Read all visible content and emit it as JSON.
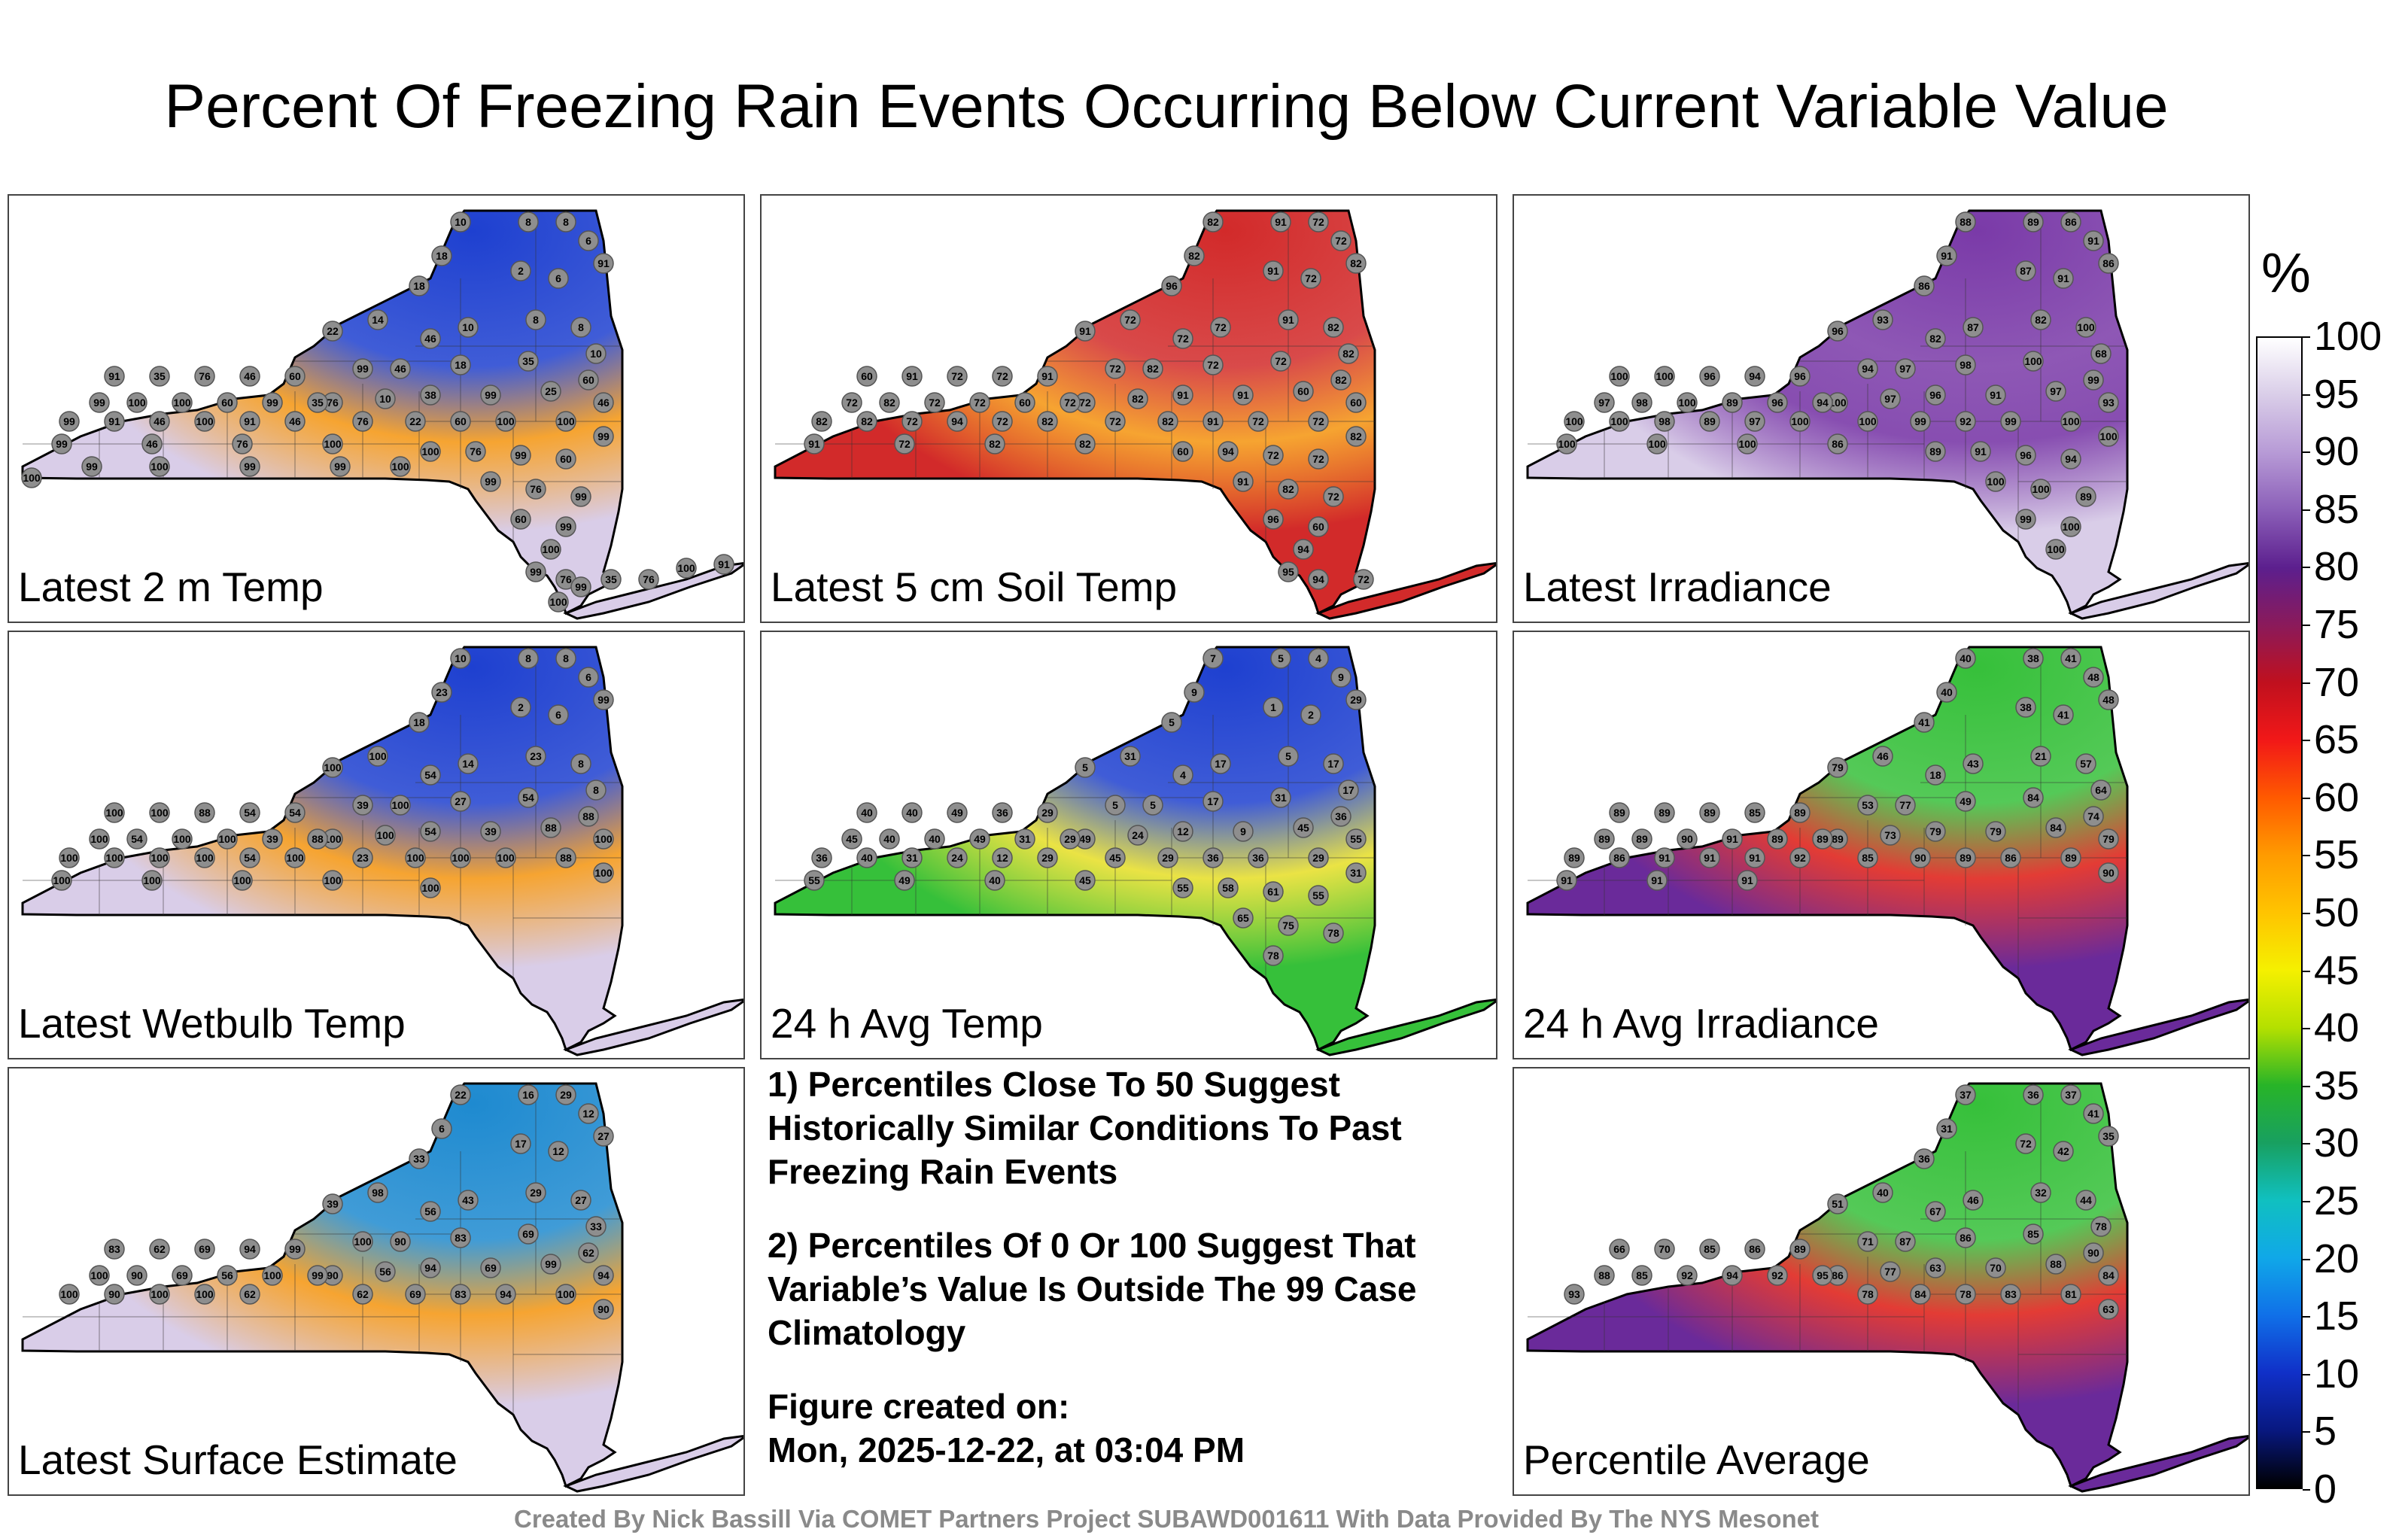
{
  "title": "Percent Of Freezing Rain Events Occurring Below Current Variable Value",
  "panels": [
    {
      "label": "Latest 2 m Temp",
      "fill": "#d9cde8",
      "north": "#1e40d0",
      "hot": "#f59a1a",
      "values": [
        "10",
        "8",
        "8",
        "6",
        "18",
        "18",
        "2",
        "6",
        "91",
        "14",
        "10",
        "46",
        "8",
        "8",
        "10",
        "22",
        "99",
        "46",
        "18",
        "35",
        "60",
        "10",
        "38",
        "99",
        "25",
        "46",
        "76",
        "76",
        "22",
        "60",
        "100",
        "100",
        "99",
        "91",
        "35",
        "76",
        "46",
        "60",
        "99",
        "100",
        "100",
        "60",
        "99",
        "35",
        "99",
        "91",
        "46",
        "100",
        "91",
        "46",
        "99",
        "46",
        "76",
        "100",
        "100",
        "76",
        "99",
        "60",
        "99",
        "76",
        "99",
        "60",
        "99",
        "100",
        "99",
        "76",
        "35",
        "76",
        "100",
        "91",
        "100",
        "99",
        "100",
        "99",
        "99",
        "100",
        "99",
        "100"
      ]
    },
    {
      "label": "Latest 5 cm Soil Temp",
      "fill": "#d22a2a",
      "north": "#d22a2a",
      "hot": "#f59a1a",
      "values": [
        "82",
        "91",
        "72",
        "72",
        "82",
        "96",
        "91",
        "72",
        "82",
        "72",
        "72",
        "72",
        "91",
        "82",
        "82",
        "91",
        "72",
        "82",
        "72",
        "72",
        "82",
        "82",
        "91",
        "91",
        "60",
        "60",
        "72",
        "72",
        "82",
        "91",
        "72",
        "72",
        "82",
        "60",
        "91",
        "72",
        "72",
        "91",
        "72",
        "82",
        "72",
        "72",
        "60",
        "72",
        "82",
        "82",
        "72",
        "94",
        "72",
        "82",
        "91",
        "72",
        "82",
        "82",
        "60",
        "94",
        "72",
        "72",
        "91",
        "82",
        "72",
        "96",
        "60",
        "94",
        "95",
        "94",
        "72"
      ]
    },
    {
      "label": "Latest Irradiance",
      "fill": "#d9cde8",
      "north": "#7a3aa8",
      "hot": "#7a3aa8",
      "values": [
        "88",
        "89",
        "86",
        "91",
        "91",
        "86",
        "87",
        "91",
        "86",
        "93",
        "87",
        "82",
        "82",
        "100",
        "68",
        "96",
        "94",
        "97",
        "98",
        "100",
        "99",
        "97",
        "96",
        "91",
        "97",
        "93",
        "100",
        "100",
        "99",
        "92",
        "99",
        "100",
        "100",
        "100",
        "100",
        "96",
        "94",
        "96",
        "97",
        "98",
        "100",
        "89",
        "96",
        "94",
        "100",
        "100",
        "98",
        "89",
        "97",
        "100",
        "100",
        "100",
        "100",
        "86",
        "89",
        "91",
        "96",
        "94",
        "100",
        "100",
        "89",
        "99",
        "100",
        "100"
      ]
    },
    {
      "label": "Latest Wetbulb Temp",
      "fill": "#d9cde8",
      "north": "#1e40d0",
      "hot": "#f59a1a",
      "values": [
        "10",
        "8",
        "8",
        "6",
        "23",
        "18",
        "2",
        "6",
        "99",
        "100",
        "14",
        "54",
        "23",
        "8",
        "8",
        "100",
        "39",
        "100",
        "27",
        "54",
        "88",
        "100",
        "54",
        "39",
        "88",
        "100",
        "100",
        "23",
        "100",
        "100",
        "100",
        "88",
        "100",
        "100",
        "100",
        "88",
        "54",
        "54",
        "100",
        "54",
        "100",
        "100",
        "39",
        "88",
        "100",
        "100",
        "100",
        "100",
        "54",
        "100",
        "100",
        "100",
        "100",
        "100",
        "100"
      ]
    },
    {
      "label": "24 h Avg Temp",
      "fill": "#36c03a",
      "north": "#1e40d0",
      "hot": "#e8e030",
      "values": [
        "7",
        "5",
        "4",
        "9",
        "9",
        "5",
        "1",
        "2",
        "29",
        "31",
        "17",
        "4",
        "5",
        "17",
        "17",
        "5",
        "5",
        "5",
        "17",
        "31",
        "36",
        "24",
        "12",
        "9",
        "45",
        "55",
        "49",
        "45",
        "29",
        "36",
        "36",
        "29",
        "31",
        "40",
        "40",
        "49",
        "36",
        "29",
        "45",
        "40",
        "40",
        "49",
        "31",
        "29",
        "36",
        "40",
        "31",
        "24",
        "12",
        "29",
        "55",
        "49",
        "40",
        "45",
        "55",
        "58",
        "61",
        "55",
        "65",
        "75",
        "78",
        "78"
      ]
    },
    {
      "label": "24 h Avg Irradiance",
      "fill": "#6a2a9a",
      "north": "#36c03a",
      "hot": "#e0261e",
      "values": [
        "40",
        "38",
        "41",
        "48",
        "40",
        "41",
        "38",
        "41",
        "48",
        "46",
        "43",
        "18",
        "21",
        "57",
        "64",
        "79",
        "53",
        "77",
        "49",
        "84",
        "74",
        "73",
        "79",
        "79",
        "84",
        "79",
        "89",
        "85",
        "90",
        "89",
        "86",
        "89",
        "90",
        "89",
        "89",
        "89",
        "85",
        "89",
        "89",
        "89",
        "90",
        "91",
        "89",
        "89",
        "89",
        "86",
        "91",
        "91",
        "91",
        "92",
        "91",
        "91",
        "91"
      ]
    },
    {
      "label": "Latest Surface Estimate",
      "fill": "#d9cde8",
      "north": "#1e8ad0",
      "hot": "#f59a1a",
      "values": [
        "22",
        "16",
        "29",
        "12",
        "6",
        "33",
        "17",
        "12",
        "27",
        "98",
        "43",
        "56",
        "29",
        "27",
        "33",
        "39",
        "100",
        "90",
        "83",
        "69",
        "62",
        "56",
        "94",
        "69",
        "99",
        "94",
        "90",
        "62",
        "69",
        "83",
        "94",
        "100",
        "90",
        "83",
        "62",
        "69",
        "94",
        "99",
        "100",
        "90",
        "69",
        "56",
        "100",
        "99",
        "100",
        "90",
        "100",
        "100",
        "62"
      ]
    },
    {
      "label": "Percentile Average",
      "fill": "#6a2a9a",
      "north": "#36c03a",
      "hot": "#e0261e",
      "values": [
        "37",
        "36",
        "37",
        "41",
        "31",
        "36",
        "72",
        "42",
        "35",
        "40",
        "46",
        "67",
        "32",
        "44",
        "78",
        "51",
        "71",
        "87",
        "86",
        "85",
        "90",
        "77",
        "63",
        "70",
        "88",
        "84",
        "86",
        "78",
        "84",
        "78",
        "83",
        "81",
        "63",
        "66",
        "70",
        "85",
        "86",
        "89",
        "88",
        "85",
        "92",
        "94",
        "92",
        "95",
        "93"
      ]
    }
  ],
  "notes": {
    "note1": "1) Percentiles Close To 50 Suggest Historically Similar Conditions To Past Freezing Rain Events",
    "note2": "2) Percentiles Of 0 Or 100 Suggest That Variable’s Value Is Outside The 99 Case Climatology",
    "created_label": "Figure created on:",
    "created_value": "Mon, 2025-12-22, at 03:04 PM"
  },
  "legend": {
    "unit": "%",
    "ticks": [
      "100",
      "95",
      "90",
      "85",
      "80",
      "75",
      "70",
      "65",
      "60",
      "55",
      "50",
      "45",
      "40",
      "35",
      "30",
      "25",
      "20",
      "15",
      "10",
      "5",
      "0"
    ],
    "colors": [
      "#ffffff",
      "#d9cde8",
      "#b79ad6",
      "#8b5fb8",
      "#5c1f8e",
      "#8b1a5a",
      "#c0101e",
      "#f21818",
      "#ff5a00",
      "#ff9b00",
      "#ffc400",
      "#f5f000",
      "#b4e000",
      "#28b428",
      "#18a060",
      "#10c0c0",
      "#10a8e8",
      "#1070e8",
      "#1030c8",
      "#081880",
      "#000000"
    ]
  },
  "credit": "Created By Nick Bassill Via COMET Partners Project SUBAWD001611 With Data Provided By The NYS Mesonet"
}
